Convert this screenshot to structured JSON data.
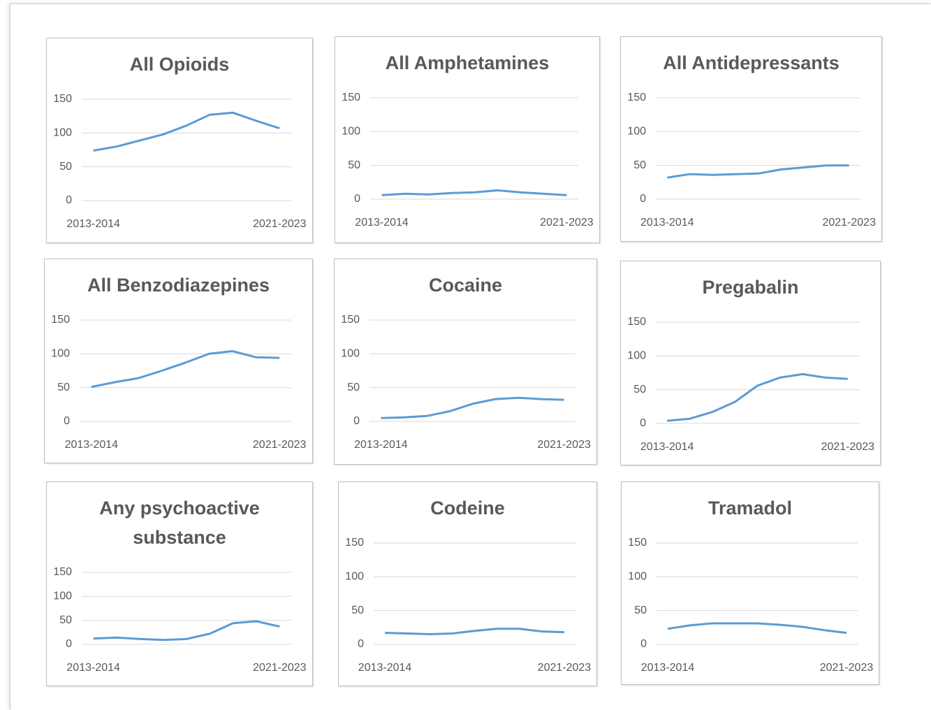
{
  "chart_data": [
    {
      "type": "line",
      "title": "All Opioids",
      "categories": [
        "2013-2014",
        null,
        null,
        null,
        null,
        null,
        null,
        null,
        "2021-2023"
      ],
      "values": [
        74,
        80,
        89,
        98,
        111,
        127,
        130,
        118,
        107
      ],
      "color": "#5b9bd5",
      "ylim": [
        0,
        150
      ],
      "yticks": [
        0,
        50,
        100,
        150
      ],
      "grid": true
    },
    {
      "type": "line",
      "title": "All Amphetamines",
      "categories": [
        "2013-2014",
        null,
        null,
        null,
        null,
        null,
        null,
        null,
        "2021-2023"
      ],
      "values": [
        6,
        8,
        7,
        9,
        10,
        13,
        10,
        8,
        6
      ],
      "color": "#5b9bd5",
      "ylim": [
        0,
        150
      ],
      "yticks": [
        0,
        50,
        100,
        150
      ],
      "grid": true
    },
    {
      "type": "line",
      "title": "All Antidepressants",
      "categories": [
        "2013-2014",
        null,
        null,
        null,
        null,
        null,
        null,
        null,
        "2021-2023"
      ],
      "values": [
        32,
        37,
        36,
        37,
        38,
        44,
        47,
        50,
        50
      ],
      "color": "#5b9bd5",
      "ylim": [
        0,
        150
      ],
      "yticks": [
        0,
        50,
        100,
        150
      ],
      "grid": true
    },
    {
      "type": "line",
      "title": "All Benzodiazepines",
      "categories": [
        "2013-2014",
        null,
        null,
        null,
        null,
        null,
        null,
        null,
        "2021-2023"
      ],
      "values": [
        51,
        58,
        64,
        75,
        87,
        100,
        104,
        95,
        94
      ],
      "color": "#5b9bd5",
      "ylim": [
        0,
        150
      ],
      "yticks": [
        0,
        50,
        100,
        150
      ],
      "grid": true
    },
    {
      "type": "line",
      "title": "Cocaine",
      "categories": [
        "2013-2014",
        null,
        null,
        null,
        null,
        null,
        null,
        null,
        "2021-2023"
      ],
      "values": [
        5,
        6,
        8,
        15,
        26,
        33,
        35,
        33,
        32
      ],
      "color": "#5b9bd5",
      "ylim": [
        0,
        150
      ],
      "yticks": [
        0,
        50,
        100,
        150
      ],
      "grid": true
    },
    {
      "type": "line",
      "title": "Pregabalin",
      "categories": [
        "2013-2014",
        null,
        null,
        null,
        null,
        null,
        null,
        null,
        "2021-2023"
      ],
      "values": [
        4,
        7,
        17,
        32,
        56,
        68,
        73,
        68,
        66
      ],
      "color": "#5b9bd5",
      "ylim": [
        0,
        150
      ],
      "yticks": [
        0,
        50,
        100,
        150
      ],
      "grid": true
    },
    {
      "type": "line",
      "title": "Any psychoactive substance",
      "categories": [
        "2013-2014",
        null,
        null,
        null,
        null,
        null,
        null,
        null,
        "2021-2023"
      ],
      "values": [
        12,
        14,
        11,
        9,
        11,
        22,
        44,
        48,
        37
      ],
      "color": "#5b9bd5",
      "ylim": [
        0,
        150
      ],
      "yticks": [
        0,
        50,
        100,
        150
      ],
      "grid": true
    },
    {
      "type": "line",
      "title": "Codeine",
      "categories": [
        "2013-2014",
        null,
        null,
        null,
        null,
        null,
        null,
        null,
        "2021-2023"
      ],
      "values": [
        17,
        16,
        15,
        16,
        20,
        23,
        23,
        19,
        18
      ],
      "color": "#5b9bd5",
      "ylim": [
        0,
        150
      ],
      "yticks": [
        0,
        50,
        100,
        150
      ],
      "grid": true
    },
    {
      "type": "line",
      "title": "Tramadol",
      "categories": [
        "2013-2014",
        null,
        null,
        null,
        null,
        null,
        null,
        null,
        "2021-2023"
      ],
      "values": [
        23,
        28,
        31,
        31,
        31,
        29,
        26,
        21,
        17
      ],
      "color": "#5b9bd5",
      "ylim": [
        0,
        150
      ],
      "yticks": [
        0,
        50,
        100,
        150
      ],
      "grid": true
    }
  ]
}
